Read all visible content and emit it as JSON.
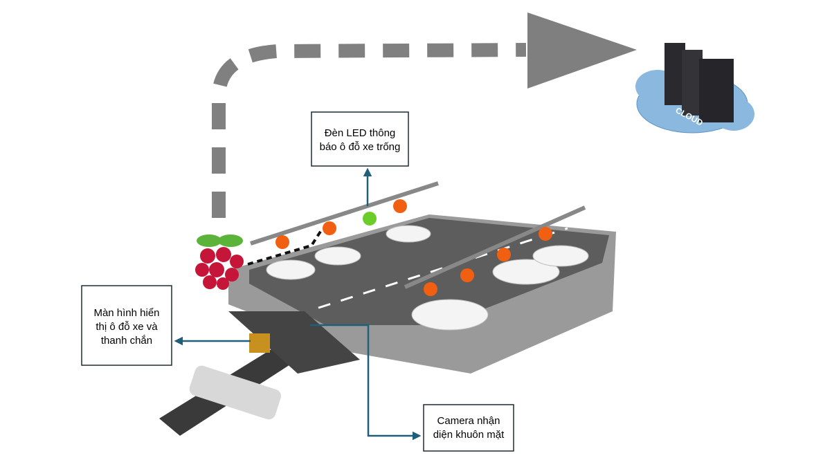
{
  "callouts": {
    "led": [
      "Đèn LED thông",
      "báo ô đỗ xe trống"
    ],
    "screen": [
      "Màn hình hiển",
      "thị ô đỗ xe và",
      "thanh chắn"
    ],
    "camera": [
      "Camera nhận",
      "diện khuôn mặt"
    ]
  },
  "cloud_label": "CLOUD"
}
